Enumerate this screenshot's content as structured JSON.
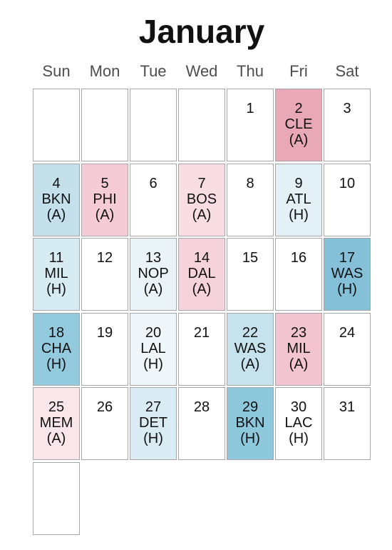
{
  "chart_data": {
    "type": "heatmap",
    "title": "January",
    "weekdays": [
      "Sun",
      "Mon",
      "Tue",
      "Wed",
      "Thu",
      "Fri",
      "Sat"
    ],
    "first_weekday": 4,
    "days_in_month": 31,
    "calendar_rows": 6,
    "days": [
      {
        "day": 1
      },
      {
        "day": 2,
        "opponent": "CLE",
        "venue": "(A)",
        "color": "#e8a8b8"
      },
      {
        "day": 3
      },
      {
        "day": 4,
        "opponent": "BKN",
        "venue": "(A)",
        "color": "#c3e0eb"
      },
      {
        "day": 5,
        "opponent": "PHI",
        "venue": "(A)",
        "color": "#f5ccd6"
      },
      {
        "day": 6
      },
      {
        "day": 7,
        "opponent": "BOS",
        "venue": "(A)",
        "color": "#f8dde3"
      },
      {
        "day": 8
      },
      {
        "day": 9,
        "opponent": "ATL",
        "venue": "(H)",
        "color": "#e3f1f7"
      },
      {
        "day": 10
      },
      {
        "day": 11,
        "opponent": "MIL",
        "venue": "(H)",
        "color": "#d7ebf2"
      },
      {
        "day": 12
      },
      {
        "day": 13,
        "opponent": "NOP",
        "venue": "(A)",
        "color": "#eaf4f8"
      },
      {
        "day": 14,
        "opponent": "DAL",
        "venue": "(A)",
        "color": "#f6d2da"
      },
      {
        "day": 15
      },
      {
        "day": 16
      },
      {
        "day": 17,
        "opponent": "WAS",
        "venue": "(H)",
        "color": "#84c1d9"
      },
      {
        "day": 18,
        "opponent": "CHA",
        "venue": "(H)",
        "color": "#93cadd"
      },
      {
        "day": 19
      },
      {
        "day": 20,
        "opponent": "LAL",
        "venue": "(H)",
        "color": "#eef6f9"
      },
      {
        "day": 21
      },
      {
        "day": 22,
        "opponent": "WAS",
        "venue": "(A)",
        "color": "#c6e2ec"
      },
      {
        "day": 23,
        "opponent": "MIL",
        "venue": "(A)",
        "color": "#f2c4cf"
      },
      {
        "day": 24
      },
      {
        "day": 25,
        "opponent": "MEM",
        "venue": "(A)",
        "color": "#fae6ea"
      },
      {
        "day": 26
      },
      {
        "day": 27,
        "opponent": "DET",
        "venue": "(H)",
        "color": "#d9ecf3"
      },
      {
        "day": 28
      },
      {
        "day": 29,
        "opponent": "BKN",
        "venue": "(H)",
        "color": "#8ec8dc"
      },
      {
        "day": 30,
        "opponent": "LAC",
        "venue": "(H)",
        "color": "#ffffff"
      },
      {
        "day": 31
      }
    ]
  }
}
